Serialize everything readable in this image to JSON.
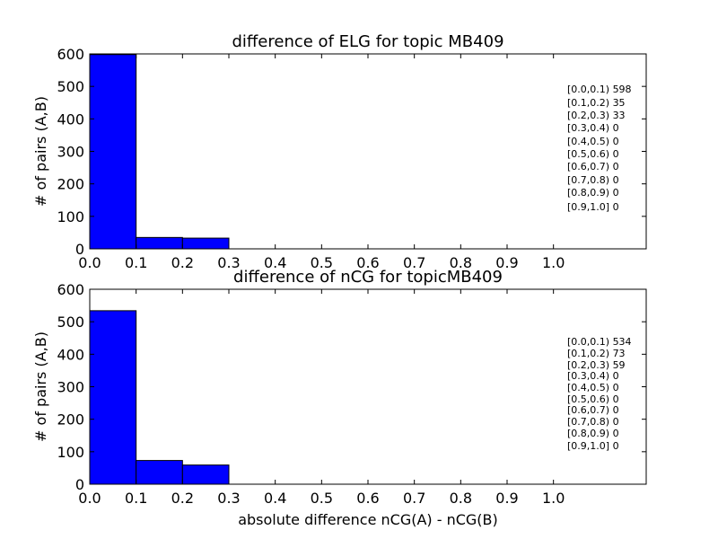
{
  "chart_data": [
    {
      "type": "bar",
      "title": "difference of ELG for topic MB409",
      "xlabel": "",
      "ylabel": "# of pairs (A,B)",
      "bins": [
        [
          0.0,
          0.1
        ],
        [
          0.1,
          0.2
        ],
        [
          0.2,
          0.3
        ],
        [
          0.3,
          0.4
        ],
        [
          0.4,
          0.5
        ],
        [
          0.5,
          0.6
        ],
        [
          0.6,
          0.7
        ],
        [
          0.7,
          0.8
        ],
        [
          0.8,
          0.9
        ],
        [
          0.9,
          1.0
        ]
      ],
      "values": [
        598,
        35,
        33,
        0,
        0,
        0,
        0,
        0,
        0,
        0
      ],
      "bar_color": "#0000ff",
      "xlim": [
        0.0,
        1.2
      ],
      "ylim": [
        0,
        600
      ],
      "xticks": [
        "0.0",
        "0.1",
        "0.2",
        "0.3",
        "0.4",
        "0.5",
        "0.6",
        "0.7",
        "0.8",
        "0.9",
        "1.0"
      ],
      "yticks": [
        "0",
        "100",
        "200",
        "300",
        "400",
        "500",
        "600"
      ],
      "annotation_lines": [
        "[0.0,0.1) 598",
        "[0.1,0.2) 35",
        "[0.2,0.3) 33",
        "[0.3,0.4) 0",
        "[0.4,0.5) 0",
        "[0.5,0.6) 0",
        "[0.6,0.7) 0",
        "[0.7,0.8) 0",
        "[0.8,0.9) 0",
        "[0.9,1.0] 0"
      ]
    },
    {
      "type": "bar",
      "title": "difference of nCG for topicMB409",
      "xlabel": "absolute difference nCG(A) - nCG(B)",
      "ylabel": "# of pairs (A,B)",
      "bins": [
        [
          0.0,
          0.1
        ],
        [
          0.1,
          0.2
        ],
        [
          0.2,
          0.3
        ],
        [
          0.3,
          0.4
        ],
        [
          0.4,
          0.5
        ],
        [
          0.5,
          0.6
        ],
        [
          0.6,
          0.7
        ],
        [
          0.7,
          0.8
        ],
        [
          0.8,
          0.9
        ],
        [
          0.9,
          1.0
        ]
      ],
      "values": [
        534,
        73,
        59,
        0,
        0,
        0,
        0,
        0,
        0,
        0
      ],
      "bar_color": "#0000ff",
      "xlim": [
        0.0,
        1.2
      ],
      "ylim": [
        0,
        600
      ],
      "xticks": [
        "0.0",
        "0.1",
        "0.2",
        "0.3",
        "0.4",
        "0.5",
        "0.6",
        "0.7",
        "0.8",
        "0.9",
        "1.0"
      ],
      "yticks": [
        "0",
        "100",
        "200",
        "300",
        "400",
        "500",
        "600"
      ],
      "annotation_lines": [
        "[0.0,0.1) 534",
        "[0.1,0.2) 73",
        "[0.2,0.3) 59",
        "[0.3,0.4) 0",
        "[0.4,0.5) 0",
        "[0.5,0.6) 0",
        "[0.6,0.7) 0",
        "[0.7,0.8) 0",
        "[0.8,0.9) 0",
        "[0.9,1.0] 0"
      ]
    }
  ]
}
